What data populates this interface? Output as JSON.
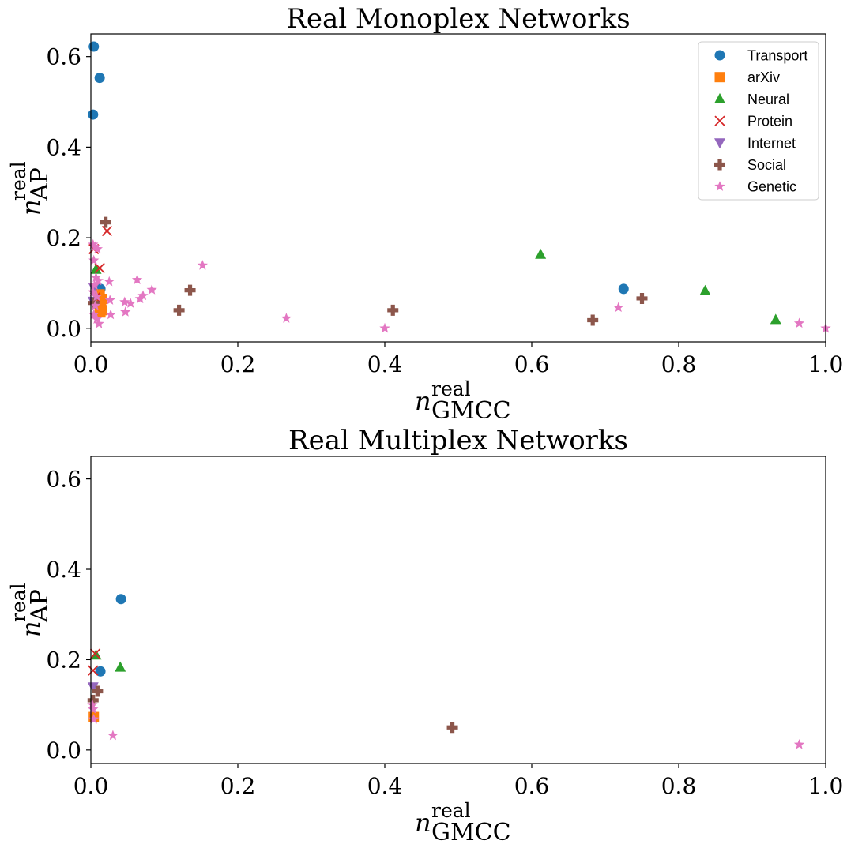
{
  "colors": {
    "Transport": "#1f77b4",
    "arXiv": "#ff7f0e",
    "Neural": "#2ca02c",
    "Protein": "#d62728",
    "Internet": "#9467bd",
    "Social": "#8c564b",
    "Genetic": "#e377c2"
  },
  "legend": [
    {
      "label": "Transport",
      "marker": "circle"
    },
    {
      "label": "arXiv",
      "marker": "square"
    },
    {
      "label": "Neural",
      "marker": "triangle-up"
    },
    {
      "label": "Protein",
      "marker": "x"
    },
    {
      "label": "Internet",
      "marker": "triangle-down"
    },
    {
      "label": "Social",
      "marker": "plus"
    },
    {
      "label": "Genetic",
      "marker": "star"
    }
  ],
  "chart_data": [
    {
      "type": "scatter",
      "title": "Real Monoplex Networks",
      "xlabel": {
        "base": "n",
        "sup": "real",
        "sub": "GMCC"
      },
      "ylabel": {
        "base": "n",
        "sup": "real",
        "sub": "AP"
      },
      "xlim": [
        0,
        1.0
      ],
      "ylim": [
        -0.03,
        0.65
      ],
      "xticks": [
        0.0,
        0.2,
        0.4,
        0.6,
        0.8,
        1.0
      ],
      "xtick_labels": [
        "0.0",
        "0.2",
        "0.4",
        "0.6",
        "0.8",
        "1.0"
      ],
      "yticks": [
        0.0,
        0.2,
        0.4,
        0.6
      ],
      "ytick_labels": [
        "0.0",
        "0.2",
        "0.4",
        "0.6"
      ],
      "legend_position": "upper right",
      "series": [
        {
          "name": "Transport",
          "x": [
            0.004,
            0.012,
            0.003,
            0.013,
            0.725
          ],
          "y": [
            0.622,
            0.553,
            0.472,
            0.087,
            0.087
          ]
        },
        {
          "name": "arXiv",
          "x": [
            0.012,
            0.015,
            0.013,
            0.014,
            0.012,
            0.015,
            0.013
          ],
          "y": [
            0.075,
            0.065,
            0.058,
            0.05,
            0.045,
            0.04,
            0.035
          ]
        },
        {
          "name": "Neural",
          "x": [
            0.007,
            0.612,
            0.836,
            0.932
          ],
          "y": [
            0.13,
            0.163,
            0.083,
            0.019
          ]
        },
        {
          "name": "Protein",
          "x": [
            0.022,
            0.012,
            0.004,
            0.006
          ],
          "y": [
            0.215,
            0.133,
            0.175,
            0.068
          ]
        },
        {
          "name": "Internet",
          "x": [
            0.004,
            0.003
          ],
          "y": [
            0.09,
            0.06
          ]
        },
        {
          "name": "Social",
          "x": [
            0.02,
            0.004,
            0.12,
            0.135,
            0.411,
            0.683,
            0.75
          ],
          "y": [
            0.234,
            0.056,
            0.04,
            0.084,
            0.04,
            0.018,
            0.066
          ]
        },
        {
          "name": "Genetic",
          "x": [
            0.003,
            0.006,
            0.009,
            0.004,
            0.007,
            0.01,
            0.005,
            0.003,
            0.008,
            0.006,
            0.004,
            0.008,
            0.011,
            0.025,
            0.026,
            0.027,
            0.063,
            0.046,
            0.054,
            0.067,
            0.071,
            0.083,
            0.047,
            0.152,
            0.266,
            0.4,
            0.718,
            0.964,
            1.0
          ],
          "y": [
            0.185,
            0.18,
            0.175,
            0.15,
            0.112,
            0.105,
            0.095,
            0.08,
            0.07,
            0.05,
            0.03,
            0.02,
            0.01,
            0.103,
            0.062,
            0.03,
            0.107,
            0.058,
            0.055,
            0.065,
            0.072,
            0.085,
            0.036,
            0.139,
            0.022,
            0.0,
            0.046,
            0.011,
            0.0
          ]
        }
      ]
    },
    {
      "type": "scatter",
      "title": "Real Multiplex Networks",
      "xlabel": {
        "base": "n",
        "sup": "real",
        "sub": "GMCC"
      },
      "ylabel": {
        "base": "n",
        "sup": "real",
        "sub": "AP"
      },
      "xlim": [
        0,
        1.0
      ],
      "ylim": [
        -0.03,
        0.65
      ],
      "xticks": [
        0.0,
        0.2,
        0.4,
        0.6,
        0.8,
        1.0
      ],
      "xtick_labels": [
        "0.0",
        "0.2",
        "0.4",
        "0.6",
        "0.8",
        "1.0"
      ],
      "yticks": [
        0.0,
        0.2,
        0.4,
        0.6
      ],
      "ytick_labels": [
        "0.0",
        "0.2",
        "0.4",
        "0.6"
      ],
      "series": [
        {
          "name": "Transport",
          "x": [
            0.041,
            0.013
          ],
          "y": [
            0.334,
            0.174
          ]
        },
        {
          "name": "arXiv",
          "x": [
            0.004
          ],
          "y": [
            0.073
          ]
        },
        {
          "name": "Neural",
          "x": [
            0.007,
            0.04
          ],
          "y": [
            0.21,
            0.183
          ]
        },
        {
          "name": "Protein",
          "x": [
            0.006,
            0.003
          ],
          "y": [
            0.213,
            0.176
          ]
        },
        {
          "name": "Internet",
          "x": [
            0.003
          ],
          "y": [
            0.14
          ]
        },
        {
          "name": "Social",
          "x": [
            0.009,
            0.003,
            0.492
          ],
          "y": [
            0.13,
            0.11,
            0.05
          ]
        },
        {
          "name": "Genetic",
          "x": [
            0.002,
            0.003,
            0.004,
            0.03,
            0.964
          ],
          "y": [
            0.1,
            0.09,
            0.068,
            0.032,
            0.012
          ]
        }
      ]
    }
  ]
}
